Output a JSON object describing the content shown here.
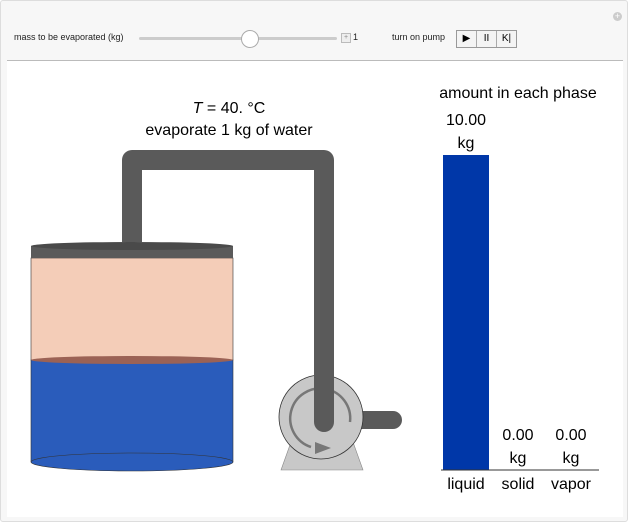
{
  "controls": {
    "mass_label": "mass to be evaporated (kg)",
    "mass_value": "1",
    "mass_slider_fraction": 0.55,
    "pump_label": "turn on pump",
    "play": "▶",
    "pause": "II",
    "reset": "K|"
  },
  "graphic": {
    "title_var": "T",
    "title_rest": " = 40. °C",
    "subtitle": "evaporate 1 kg of water",
    "chart_title": "amount in each phase",
    "phases": [
      {
        "label": "liquid",
        "value": "10.00",
        "unit": "kg",
        "amount": 10.0
      },
      {
        "label": "solid",
        "value": "0.00",
        "unit": "kg",
        "amount": 0
      },
      {
        "label": "vapor",
        "value": "0.00",
        "unit": "kg",
        "amount": 0
      }
    ],
    "colors": {
      "liquid": "#2a5cbb",
      "vapor_space": "#f4cdb8",
      "bar": "#0037a8",
      "pipe": "#5a5a5a",
      "pump": "#c8c8c8"
    }
  }
}
